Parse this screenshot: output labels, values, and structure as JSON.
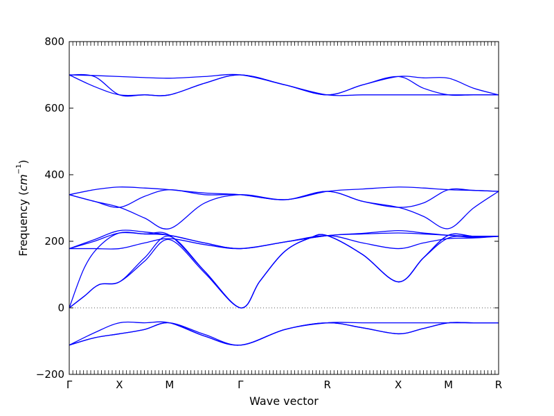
{
  "chart_data": {
    "type": "line",
    "title": "",
    "xlabel": "Wave vector",
    "ylabel_text": "Frequency (",
    "ylabel_unit": "cm",
    "ylabel_unit_exp": "−1",
    "ylabel_close": ")",
    "ylim": [
      -200,
      800
    ],
    "yticks": [
      -200,
      0,
      200,
      400,
      600,
      800
    ],
    "ytick_labels": [
      "−200",
      "0",
      "200",
      "400",
      "600",
      "800"
    ],
    "xticks": [
      {
        "label": "Γ",
        "pos": 0
      },
      {
        "label": "X",
        "pos": 1
      },
      {
        "label": "M",
        "pos": 2
      },
      {
        "label": "Γ",
        "pos": 3.414
      },
      {
        "label": "R",
        "pos": 5.146
      },
      {
        "label": "X",
        "pos": 6.56
      },
      {
        "label": "M",
        "pos": 7.56
      },
      {
        "label": "R",
        "pos": 8.56
      }
    ],
    "xlim": [
      0,
      8.56
    ],
    "zero_line": true,
    "line_color": "#0000ff",
    "series": [
      {
        "x": [
          0,
          0.5,
          1,
          1.5,
          2,
          2.7,
          3.414,
          4.3,
          5.146,
          5.85,
          6.56,
          7.06,
          7.56,
          8.06,
          8.56
        ],
        "y": [
          700,
          698,
          695,
          692,
          690,
          695,
          700,
          670,
          640,
          640,
          640,
          640,
          640,
          640,
          640
        ]
      },
      {
        "x": [
          0,
          0.5,
          1,
          1.5,
          2,
          2.7,
          3.414,
          4.3,
          5.146,
          5.85,
          6.56,
          7.06,
          7.56,
          8.06,
          8.56
        ],
        "y": [
          700,
          695,
          640,
          640,
          640,
          675,
          700,
          670,
          640,
          670,
          695,
          691,
          690,
          660,
          640
        ]
      },
      {
        "x": [
          0,
          0.5,
          1,
          1.5,
          2,
          2.7,
          3.414,
          4.3,
          5.146,
          5.85,
          6.56,
          7.06,
          7.56,
          8.06,
          8.56
        ],
        "y": [
          700,
          665,
          640,
          640,
          640,
          675,
          700,
          670,
          640,
          670,
          695,
          660,
          640,
          640,
          640
        ]
      },
      {
        "x": [
          0,
          0.5,
          1,
          1.5,
          2,
          2.7,
          3.414,
          4.3,
          5.146,
          5.85,
          6.56,
          7.06,
          7.56,
          8.06,
          8.56
        ],
        "y": [
          340,
          355,
          363,
          360,
          355,
          345,
          340,
          325,
          350,
          357,
          363,
          360,
          355,
          353,
          350
        ]
      },
      {
        "x": [
          0,
          0.5,
          1,
          1.5,
          2,
          2.7,
          3.414,
          4.3,
          5.146,
          5.85,
          6.56,
          7.06,
          7.56,
          8.06,
          8.56
        ],
        "y": [
          340,
          320,
          302,
          335,
          355,
          340,
          340,
          325,
          350,
          320,
          302,
          315,
          355,
          353,
          350
        ]
      },
      {
        "x": [
          0,
          0.5,
          1,
          1.5,
          2,
          2.7,
          3.414,
          4.3,
          5.146,
          5.85,
          6.56,
          7.06,
          7.56,
          8.06,
          8.56
        ],
        "y": [
          340,
          320,
          302,
          270,
          238,
          315,
          340,
          325,
          350,
          320,
          302,
          275,
          238,
          300,
          350
        ]
      },
      {
        "x": [
          0,
          0.5,
          1,
          1.5,
          2,
          2.7,
          3.414,
          4.3,
          5.146,
          5.85,
          6.56,
          7.06,
          7.56,
          8.06,
          8.56
        ],
        "y": [
          178,
          205,
          232,
          228,
          218,
          195,
          178,
          198,
          217,
          224,
          232,
          225,
          218,
          215,
          215
        ]
      },
      {
        "x": [
          0,
          0.5,
          1,
          1.5,
          2,
          2.7,
          3.414,
          4.3,
          5.146,
          5.85,
          6.56,
          7.06,
          7.56,
          8.06,
          8.56
        ],
        "y": [
          178,
          200,
          225,
          222,
          218,
          195,
          178,
          198,
          217,
          222,
          225,
          222,
          218,
          215,
          215
        ]
      },
      {
        "x": [
          0,
          0.5,
          1,
          1.5,
          2,
          2.7,
          3.414,
          4.3,
          5.146,
          5.85,
          6.56,
          7.06,
          7.56,
          8.06,
          8.56
        ],
        "y": [
          178,
          178,
          178,
          195,
          208,
          190,
          178,
          198,
          217,
          195,
          178,
          195,
          208,
          210,
          215
        ]
      },
      {
        "x": [
          0,
          0.3,
          0.6,
          1,
          1.5,
          2,
          2.7,
          3.414,
          3.8,
          4.3,
          4.8,
          5.146,
          5.85,
          6.56,
          7.06,
          7.56,
          8.06,
          8.56
        ],
        "y": [
          0,
          120,
          185,
          225,
          222,
          218,
          110,
          0,
          80,
          170,
          210,
          217,
          160,
          78,
          150,
          218,
          215,
          215
        ]
      },
      {
        "x": [
          0,
          0.3,
          0.6,
          1,
          1.5,
          2,
          2.7,
          3.414,
          3.8,
          4.3,
          4.8,
          5.146,
          5.85,
          6.56,
          7.06,
          7.56,
          8.06,
          8.56
        ],
        "y": [
          0,
          35,
          70,
          78,
          150,
          215,
          110,
          0,
          80,
          170,
          210,
          217,
          160,
          78,
          150,
          218,
          215,
          215
        ]
      },
      {
        "x": [
          0,
          0.3,
          0.6,
          1,
          1.5,
          2,
          2.7,
          3.414,
          3.8,
          4.3,
          4.8,
          5.146,
          5.85,
          6.56,
          7.06,
          7.56,
          8.06,
          8.56
        ],
        "y": [
          0,
          35,
          70,
          78,
          140,
          205,
          105,
          0,
          80,
          170,
          210,
          217,
          160,
          78,
          150,
          210,
          212,
          215
        ]
      },
      {
        "x": [
          0,
          0.5,
          1,
          1.5,
          2,
          2.7,
          3.414,
          4.3,
          5.146,
          5.85,
          6.56,
          7.06,
          7.56,
          8.06,
          8.56
        ],
        "y": [
          -112,
          -75,
          -45,
          -45,
          -45,
          -85,
          -112,
          -65,
          -45,
          -45,
          -45,
          -45,
          -45,
          -45,
          -45
        ]
      },
      {
        "x": [
          0,
          0.5,
          1,
          1.5,
          2,
          2.7,
          3.414,
          4.3,
          5.146,
          5.85,
          6.56,
          7.06,
          7.56,
          8.06,
          8.56
        ],
        "y": [
          -112,
          -90,
          -78,
          -65,
          -45,
          -80,
          -112,
          -65,
          -45,
          -60,
          -78,
          -62,
          -45,
          -45,
          -45
        ]
      },
      {
        "x": [
          0,
          0.5,
          1,
          1.5,
          2,
          2.7,
          3.414,
          4.3,
          5.146,
          5.85,
          6.56,
          7.06,
          7.56,
          8.06,
          8.56
        ],
        "y": [
          -112,
          -90,
          -78,
          -65,
          -45,
          -85,
          -112,
          -65,
          -45,
          -60,
          -78,
          -62,
          -45,
          -45,
          -45
        ]
      }
    ]
  }
}
